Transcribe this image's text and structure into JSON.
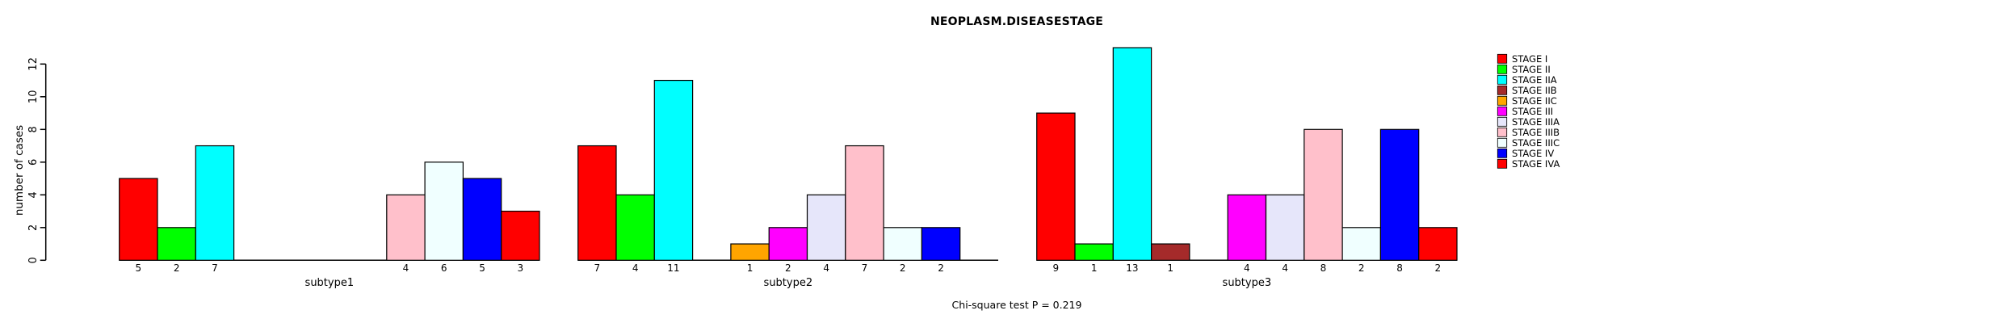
{
  "chart_data": {
    "type": "bar",
    "title": "NEOPLASM.DISEASESTAGE",
    "ylabel": "number of cases",
    "xlabel": "",
    "annotation": "Chi-square test P = 0.219",
    "ylim": [
      0,
      12
    ],
    "yticks": [
      0,
      2,
      4,
      6,
      8,
      10,
      12
    ],
    "grid": false,
    "legend_position": "right",
    "bar_value_labels_shown": true,
    "categories": [
      "STAGE I",
      "STAGE II",
      "STAGE IIA",
      "STAGE IIB",
      "STAGE IIC",
      "STAGE III",
      "STAGE IIIA",
      "STAGE IIIB",
      "STAGE IIIC",
      "STAGE IV",
      "STAGE IVA"
    ],
    "colors": [
      "#FF0000",
      "#00FF00",
      "#00FFFF",
      "#A52A2A",
      "#FFA500",
      "#FF00FF",
      "#E6E6FA",
      "#FFC0CB",
      "#F0FFFF",
      "#0000FF",
      "#FF0000"
    ],
    "series": [
      {
        "name": "subtype1",
        "values": [
          5,
          2,
          7,
          0,
          0,
          0,
          0,
          4,
          6,
          5,
          3
        ]
      },
      {
        "name": "subtype2",
        "values": [
          7,
          4,
          11,
          0,
          1,
          2,
          4,
          7,
          2,
          2,
          0
        ]
      },
      {
        "name": "subtype3",
        "values": [
          9,
          1,
          13,
          1,
          0,
          4,
          4,
          8,
          2,
          8,
          2
        ]
      }
    ]
  }
}
